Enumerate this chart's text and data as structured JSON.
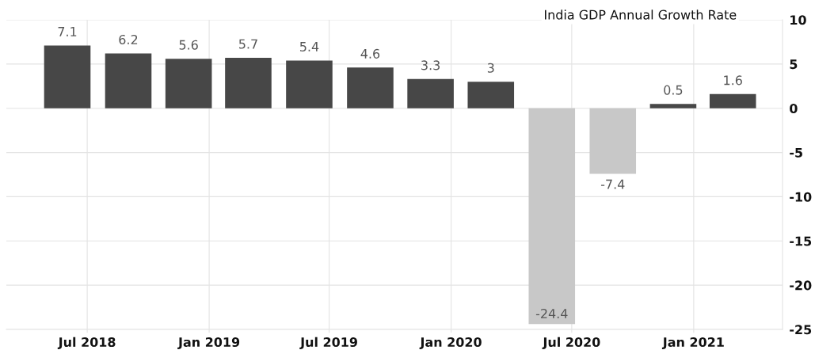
{
  "chart_data": {
    "type": "bar",
    "title": "India GDP Annual Growth Rate",
    "x": [
      "2018-06",
      "2018-09",
      "2018-12",
      "2019-03",
      "2019-06",
      "2019-09",
      "2019-12",
      "2020-03",
      "2020-06",
      "2020-09",
      "2020-12",
      "2021-03"
    ],
    "values": [
      7.1,
      6.2,
      5.6,
      5.7,
      5.4,
      4.6,
      3.3,
      3,
      -24.4,
      -7.4,
      0.5,
      1.6
    ],
    "colors": [
      "#474747",
      "#474747",
      "#474747",
      "#474747",
      "#474747",
      "#474747",
      "#474747",
      "#474747",
      "#c8c8c8",
      "#c8c8c8",
      "#474747",
      "#474747"
    ],
    "xlim": [
      "2018-03-01",
      "2021-05-15"
    ],
    "xticks": [
      {
        "value": "2018-07",
        "label": "Jul 2018"
      },
      {
        "value": "2019-01",
        "label": "Jan 2019"
      },
      {
        "value": "2019-07",
        "label": "Jul 2019"
      },
      {
        "value": "2020-01",
        "label": "Jan 2020"
      },
      {
        "value": "2020-07",
        "label": "Jul 2020"
      },
      {
        "value": "2021-01",
        "label": "Jan 2021"
      }
    ],
    "ylim": [
      -25,
      10
    ],
    "yticks": [
      10,
      5,
      0,
      -5,
      -10,
      -15,
      -20,
      -25
    ],
    "grid": true,
    "data_labels": true
  }
}
